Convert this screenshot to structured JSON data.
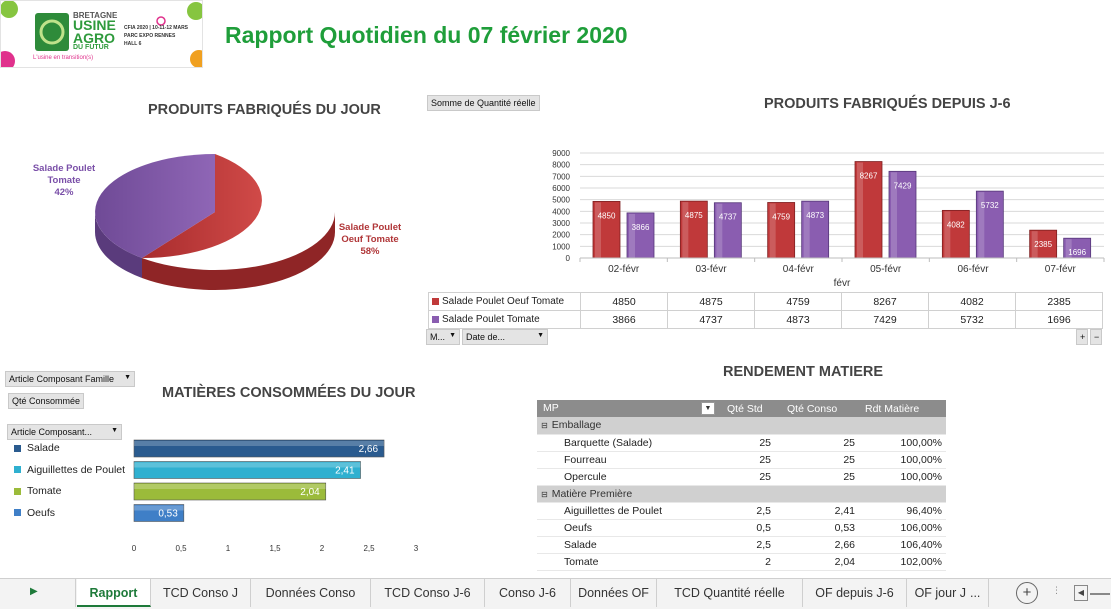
{
  "logo": {
    "line1": "BRETAGNE",
    "line2": "USINE",
    "line3": "AGRO",
    "line4": "DU FUTUR",
    "slogan": "L'usine en transition(s)",
    "event": "CFIA 2020 | 10-11-12 MARS",
    "venue": "PARC EXPO RENNES",
    "hall": "HALL 6"
  },
  "report_title": "Rapport Quotidien du 07 février 2020",
  "pie_section": {
    "title": "PRODUITS FABRIQUÉS DU JOUR",
    "label_a_line1": "Salade Poulet",
    "label_a_line2": "Tomate",
    "label_a_pct": "42%",
    "label_b_line1": "Salade Poulet",
    "label_b_line2": "Oeuf Tomate",
    "label_b_pct": "58%"
  },
  "bar_section": {
    "title": "PRODUITS FABRIQUÉS DEPUIS J-6",
    "value_button": "Somme de Quantité réelle",
    "axis_group_label": "févr",
    "filter_m": "M...",
    "filter_date": "Date de...",
    "plus": "+",
    "minus": "−"
  },
  "chart_data": [
    {
      "type": "pie",
      "categories": [
        "Salade Poulet Tomate",
        "Salade Poulet Oeuf Tomate"
      ],
      "values": [
        42,
        58
      ],
      "colors": [
        "#8a5db0",
        "#c0393a"
      ]
    },
    {
      "type": "bar",
      "categories": [
        "02-févr",
        "03-févr",
        "04-févr",
        "05-févr",
        "06-févr",
        "07-févr"
      ],
      "series": [
        {
          "name": "Salade Poulet Oeuf Tomate",
          "values": [
            4850,
            4875,
            4759,
            8267,
            4082,
            2385
          ],
          "color": "#c0393a"
        },
        {
          "name": "Salade Poulet Tomate",
          "values": [
            3866,
            4737,
            4873,
            7429,
            5732,
            1696
          ],
          "color": "#8a5db0"
        }
      ],
      "xlabel": "févr",
      "ylim": [
        0,
        9000
      ],
      "yticks": [
        "0",
        "1000",
        "2000",
        "3000",
        "4000",
        "5000",
        "6000",
        "7000",
        "8000",
        "9000"
      ]
    },
    {
      "type": "bar",
      "orientation": "horizontal",
      "categories": [
        "Salade",
        "Aiguillettes de Poulet",
        "Tomate",
        "Oeufs"
      ],
      "values": [
        2.66,
        2.41,
        2.04,
        0.53
      ],
      "value_labels": [
        "2,66",
        "2,41",
        "2,04",
        "0,53"
      ],
      "colors": [
        "#2a5b8f",
        "#2fb0d0",
        "#9bbb3a",
        "#3f7fc7"
      ],
      "xlim": [
        0,
        3
      ],
      "xticks": [
        "0",
        "0,5",
        "1",
        "1,5",
        "2",
        "2,5",
        "3"
      ]
    }
  ],
  "matieres_section": {
    "title": "MATIÈRES CONSOMMÉES DU JOUR",
    "filter_famille": "Article Composant Famille",
    "value_button": "Qté Consommée",
    "filter_article": "Article Composant..."
  },
  "rendement": {
    "title": "RENDEMENT MATIERE",
    "headers": [
      "MP",
      "Qté Std",
      "Qté Conso",
      "Rdt Matière"
    ],
    "groups": [
      {
        "name": "Emballage",
        "rows": [
          [
            "Barquette (Salade)",
            "25",
            "25",
            "100,00%"
          ],
          [
            "Fourreau",
            "25",
            "25",
            "100,00%"
          ],
          [
            "Opercule",
            "25",
            "25",
            "100,00%"
          ]
        ]
      },
      {
        "name": "Matière Première",
        "rows": [
          [
            "Aiguillettes de Poulet",
            "2,5",
            "2,41",
            "96,40%"
          ],
          [
            "Oeufs",
            "0,5",
            "0,53",
            "106,00%"
          ],
          [
            "Salade",
            "2,5",
            "2,66",
            "106,40%"
          ],
          [
            "Tomate",
            "2",
            "2,04",
            "102,00%"
          ]
        ]
      }
    ]
  },
  "tabs": [
    "Rapport",
    "TCD Conso J",
    "Données Conso",
    "TCD Conso J-6",
    "Conso J-6",
    "Données OF",
    "TCD Quantité réelle",
    "OF depuis J-6",
    "OF jour J"
  ],
  "tab_more": "...",
  "active_tab": "Rapport"
}
